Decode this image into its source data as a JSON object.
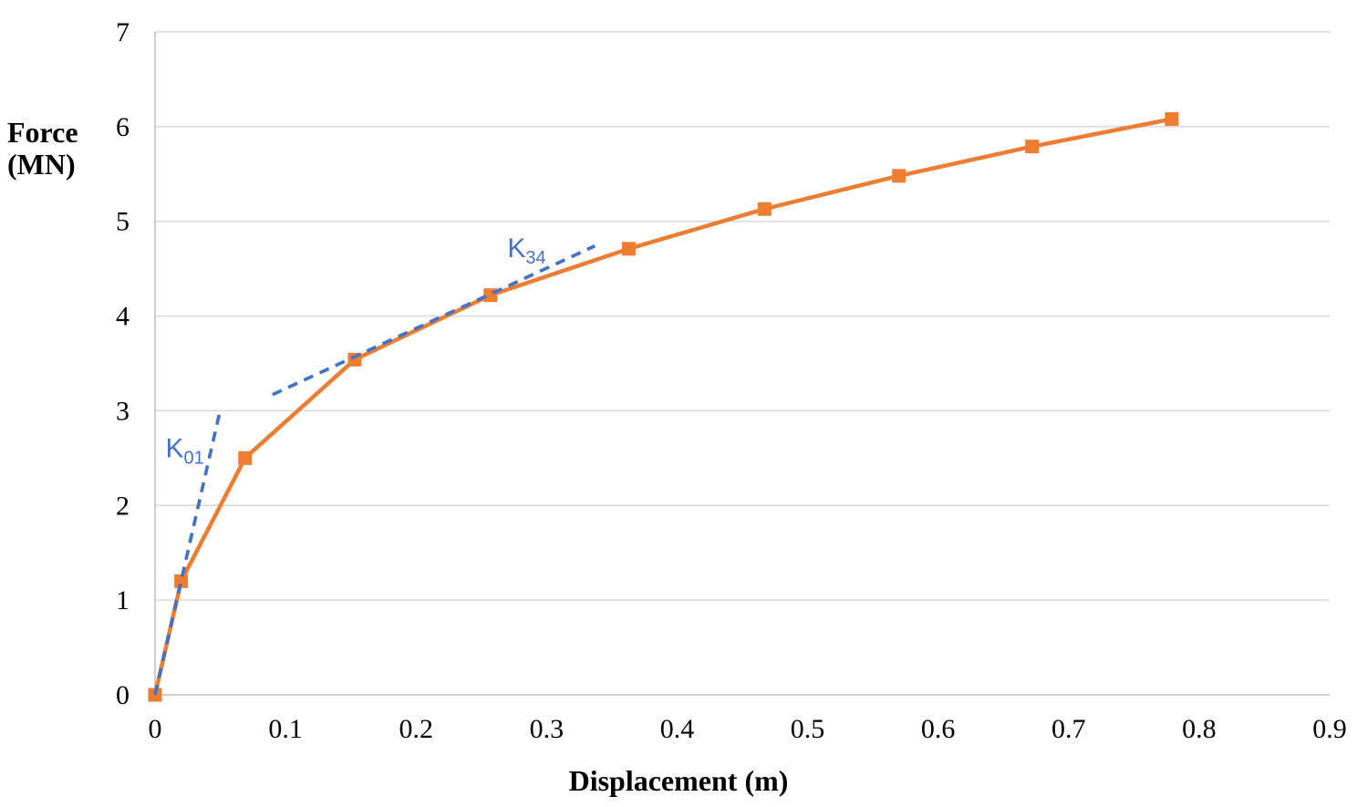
{
  "chart_data": {
    "type": "line",
    "title": "",
    "xlabel": "Displacement (m)",
    "ylabel": "Force (MN)",
    "ylabel_lines": [
      "Force",
      "(MN)"
    ],
    "xlim": [
      0,
      0.9
    ],
    "ylim": [
      0,
      7
    ],
    "x_ticks": [
      0,
      0.1,
      0.2,
      0.3,
      0.4,
      0.5,
      0.6,
      0.7,
      0.8,
      0.9
    ],
    "y_ticks": [
      0,
      1,
      2,
      3,
      4,
      5,
      6,
      7
    ],
    "grid": "horizontal-only",
    "legend": "none",
    "colors": {
      "series_orange": "#ED7D31",
      "secant_blue": "#4472C4",
      "gridline": "#D9D9D9",
      "axis_line": "#BFBFBF",
      "text": "#000000"
    },
    "series": [
      {
        "name": "force-displacement-curve",
        "color": "#ED7D31",
        "style": "solid",
        "width": 4.5,
        "marker": "square",
        "marker_size": 15,
        "points": [
          [
            0,
            0
          ],
          [
            0.02,
            1.2
          ],
          [
            0.069,
            2.5
          ],
          [
            0.153,
            3.54
          ],
          [
            0.257,
            4.22
          ],
          [
            0.363,
            4.71
          ],
          [
            0.467,
            5.13
          ],
          [
            0.57,
            5.48
          ],
          [
            0.672,
            5.79
          ],
          [
            0.779,
            6.08
          ]
        ]
      },
      {
        "name": "k01-secant-line",
        "color": "#4472C4",
        "style": "dashed",
        "width": 3.7,
        "marker": "none",
        "points": [
          [
            0,
            0
          ],
          [
            0.05,
            3.01
          ]
        ]
      },
      {
        "name": "k34-secant-line",
        "color": "#4472C4",
        "style": "dashed",
        "width": 3.7,
        "marker": "none",
        "points": [
          [
            0.09,
            3.17
          ],
          [
            0.337,
            4.74
          ]
        ]
      }
    ],
    "annotations": [
      {
        "id": "k01",
        "main": "K",
        "sub": "01",
        "x": 0.008,
        "y": 2.51,
        "color": "#4472C4"
      },
      {
        "id": "k34",
        "main": "K",
        "sub": "34",
        "x": 0.27,
        "y": 4.62,
        "color": "#4472C4"
      }
    ]
  }
}
